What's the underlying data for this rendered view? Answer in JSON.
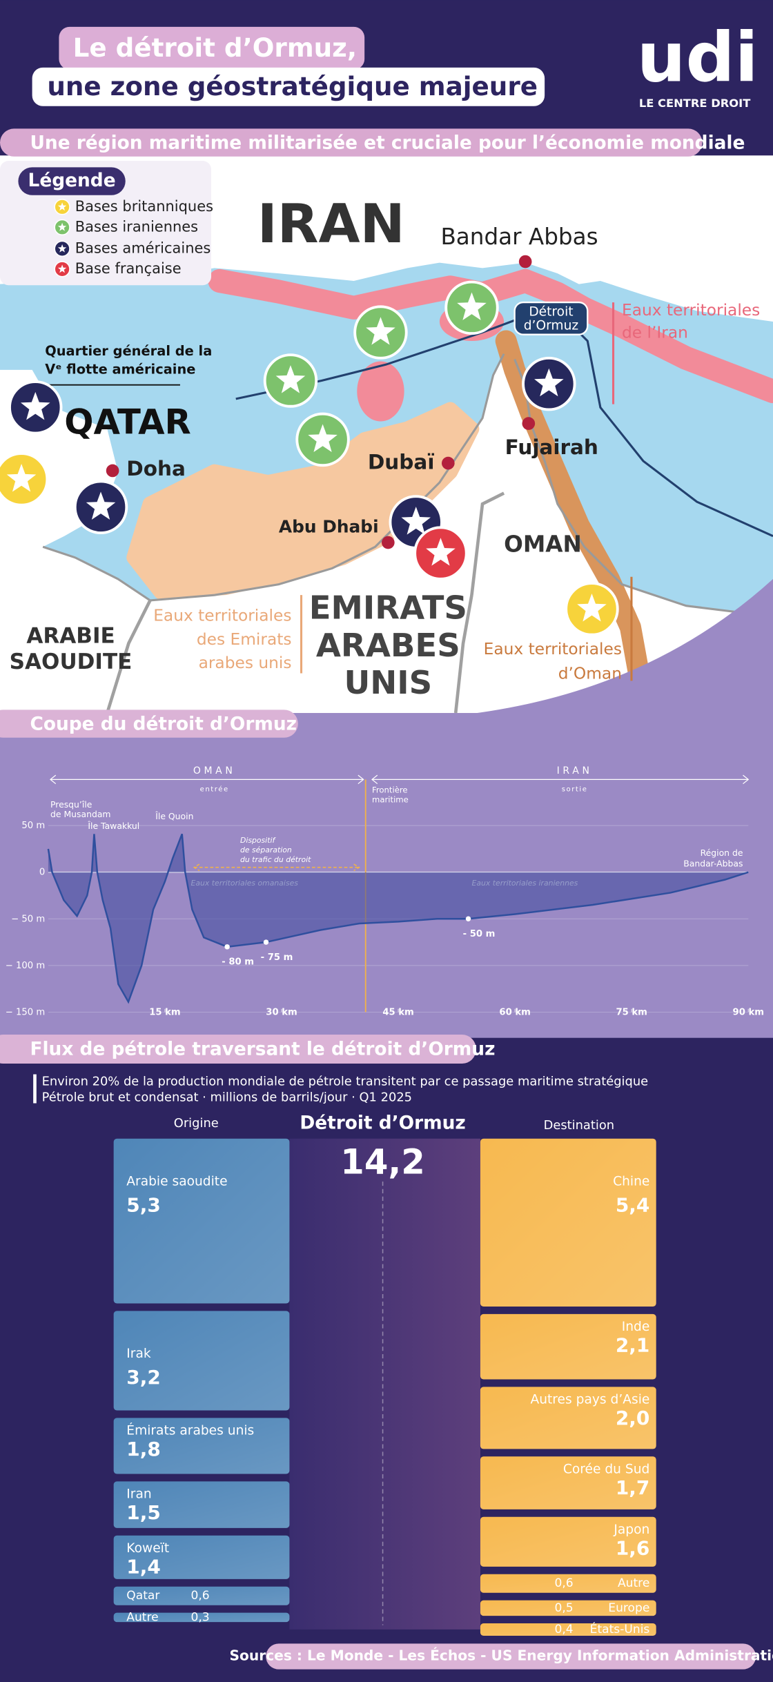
{
  "header": {
    "title_line1": "Le détroit d’Ormuz,",
    "title_line2": "une zone géostratégique majeure",
    "logo": "udi",
    "logo_tagline": "LE CENTRE DROIT"
  },
  "map": {
    "title": "Une région maritime militarisée et cruciale pour l’économie mondiale",
    "legend": {
      "title": "Légende",
      "items": [
        {
          "label": "Bases britanniques",
          "color": "#f7d33b"
        },
        {
          "label": "Bases iraniennes",
          "color": "#7dc26c"
        },
        {
          "label": "Bases américaines",
          "color": "#26285c"
        },
        {
          "label": "Base française",
          "color": "#e23b46"
        }
      ]
    },
    "countries": {
      "iran": "IRAN",
      "qatar": "QATAR",
      "oman": "OMAN",
      "uae": [
        "EMIRATS",
        "ARABES",
        "UNIS"
      ],
      "saudi": [
        "ARABIE",
        "SAOUDITE"
      ]
    },
    "cities": {
      "bandar_abbas": "Bandar Abbas",
      "doha": "Doha",
      "dubai": "Dubaï",
      "abu_dhabi": "Abu Dhabi",
      "fujairah": "Fujairah"
    },
    "strait": [
      "Détroit",
      "d’Ormuz"
    ],
    "fleet_hq": [
      "Quartier général de la",
      "Vᵉ flotte américaine"
    ],
    "waters": {
      "iran": [
        "Eaux territoriales",
        "de l’Iran"
      ],
      "uae": [
        "Eaux territoriales",
        "des Emirats",
        "arabes unis"
      ],
      "oman": [
        "Eaux territoriales",
        "d’Oman"
      ]
    }
  },
  "chart_data": [
    {
      "type": "line",
      "title": "Coupe du détroit d’Ormuz",
      "x": [
        0,
        0.5,
        2,
        3.7,
        5,
        5.6,
        5.9,
        6.3,
        7,
        8,
        9,
        10.3,
        12,
        13.5,
        15,
        16,
        17.2,
        17.6,
        18.5,
        20,
        23,
        28,
        35,
        40,
        45,
        50,
        54,
        60,
        70,
        80,
        87,
        90
      ],
      "series": [
        {
          "color": "#2f4f9e",
          "values": [
            25,
            0,
            -30,
            -47,
            -25,
            0,
            41,
            0,
            -30,
            -60,
            -120,
            -139,
            -100,
            -40,
            -10,
            15,
            41,
            0,
            -40,
            -70,
            -80,
            -75,
            -62,
            -55,
            -53,
            -50,
            -50,
            -45,
            -35,
            -22,
            -8,
            0
          ]
        }
      ],
      "xlim": [
        0,
        90
      ],
      "xticks": [
        {
          "value": 15,
          "label": "15 km"
        },
        {
          "value": 30,
          "label": "30 km"
        },
        {
          "value": 45,
          "label": "45 km"
        },
        {
          "value": 60,
          "label": "60 km"
        },
        {
          "value": 75,
          "label": "75 km"
        },
        {
          "value": 90,
          "label": "90 km"
        }
      ],
      "ylim": [
        -150,
        50
      ],
      "yticks": [
        {
          "value": 50,
          "label": "50 m"
        },
        0,
        {
          "value": -50,
          "label": "− 50 m"
        },
        {
          "value": -100,
          "label": "− 100 m"
        },
        {
          "value": -150,
          "label": "− 150 m"
        }
      ],
      "grid": true,
      "markers": {
        "x": [
          23,
          28,
          54
        ],
        "values": [
          -80,
          -75,
          -50
        ],
        "value_labels": [
          "- 80 m",
          "- 75 m",
          "- 50 m"
        ]
      },
      "annotations": {
        "oman": "OMAN",
        "entry": "entrée",
        "iran": "IRAN",
        "exit": "sortie",
        "border": [
          "Frontière",
          "maritime"
        ],
        "musandam": [
          "Presqu’île",
          "de Musandam"
        ],
        "tawakkul": "Île Tawakkul",
        "quoin": "Île Quoin",
        "tss": [
          "Dispositif",
          "de séparation",
          "du trafic du détroit"
        ],
        "oman_waters": "Eaux territoriales omanaises",
        "iran_waters": "Eaux territoriales iraniennes",
        "bandar": [
          "Région de",
          "Bandar-Abbas"
        ]
      }
    },
    {
      "type": "flow",
      "title": "Flux de pétrole traversant le détroit d’Ormuz",
      "subtitle": [
        "Environ 20% de la production mondiale de pétrole transitent par ce passage maritime stratégique",
        "Pétrole brut et condensat · millions de barrils/jour · Q1 2025"
      ],
      "source_label": "Origine",
      "center_label": "Détroit d’Ormuz",
      "target_label": "Destination",
      "total": 14.2,
      "total_label": "14,2",
      "origins": {
        "categories": [
          "Arabie saoudite",
          "Irak",
          "Émirats arabes unis",
          "Iran",
          "Koweït",
          "Qatar",
          "Autre"
        ],
        "values": [
          5.3,
          3.2,
          1.8,
          1.5,
          1.4,
          0.6,
          0.3
        ],
        "value_labels": [
          "5,3",
          "3,2",
          "1,8",
          "1,5",
          "1,4",
          "0,6",
          "0,3"
        ],
        "color": "#4f86b8"
      },
      "destinations": {
        "categories": [
          "Chine",
          "Inde",
          "Autres pays d’Asie",
          "Corée du Sud",
          "Japon",
          "Autre",
          "Europe",
          "États-Unis"
        ],
        "values": [
          5.4,
          2.1,
          2.0,
          1.7,
          1.6,
          0.6,
          0.5,
          0.4
        ],
        "value_labels": [
          "5,4",
          "2,1",
          "2,0",
          "1,7",
          "1,6",
          "0,6",
          "0,5",
          "0,4"
        ],
        "color": "#f7b950"
      }
    }
  ],
  "sources": "Sources : Le Monde - Les Échos - US Energy Information Administration"
}
